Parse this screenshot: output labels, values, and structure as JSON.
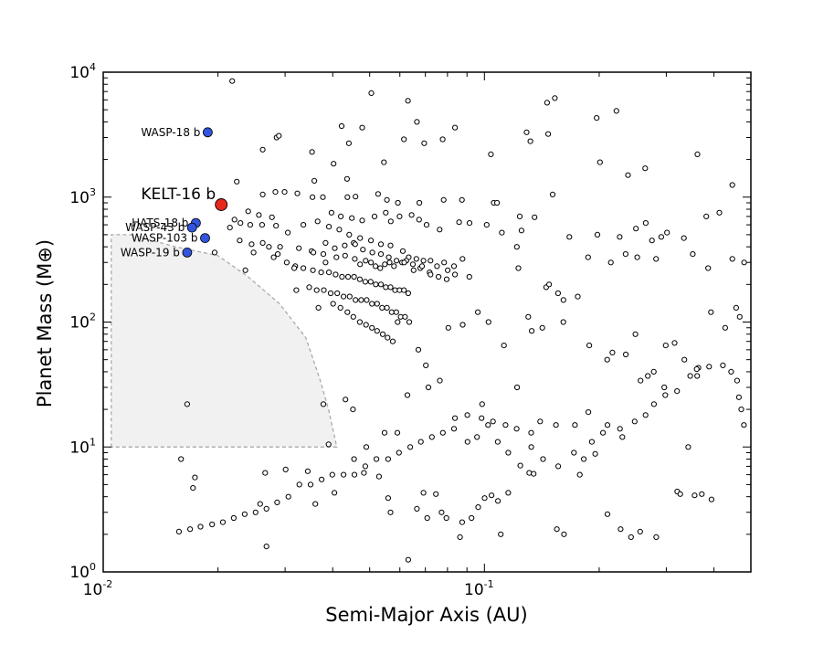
{
  "chart_data": {
    "type": "scatter",
    "title": "",
    "xlabel": "Semi-Major Axis (AU)",
    "ylabel": "Planet Mass (M⊕)",
    "xscale": "log",
    "yscale": "log",
    "xlim": [
      0.01,
      0.5
    ],
    "ylim": [
      1,
      10000
    ],
    "grid": false,
    "x_ticks": [
      {
        "value": 0.01,
        "base": "10",
        "exp": "-2"
      },
      {
        "value": 0.1,
        "base": "10",
        "exp": "-1"
      }
    ],
    "y_ticks": [
      {
        "value": 1,
        "base": "10",
        "exp": "0"
      },
      {
        "value": 10,
        "base": "10",
        "exp": "1"
      },
      {
        "value": 100,
        "base": "10",
        "exp": "2"
      },
      {
        "value": 1000,
        "base": "10",
        "exp": "3"
      },
      {
        "value": 10000,
        "base": "10",
        "exp": "4"
      }
    ],
    "colors": {
      "highlight": "#e8281e",
      "named": "#3355dd",
      "background_points": "#ffffff",
      "excluded_region": "#f0f1f0"
    },
    "excluded_region": [
      [
        0.0105,
        10
      ],
      [
        0.0105,
        500
      ],
      [
        0.0118,
        500
      ],
      [
        0.0155,
        400
      ],
      [
        0.02,
        340
      ],
      [
        0.024,
        230
      ],
      [
        0.029,
        140
      ],
      [
        0.034,
        75
      ],
      [
        0.037,
        35
      ],
      [
        0.039,
        20
      ],
      [
        0.041,
        10
      ]
    ],
    "highlight": [
      {
        "name": "KELT-16 b",
        "x": 0.0204,
        "y": 870
      }
    ],
    "named_planets": [
      {
        "name": "WASP-18 b",
        "x": 0.0188,
        "y": 3300
      },
      {
        "name": "HATS-18 b",
        "x": 0.0175,
        "y": 620
      },
      {
        "name": "WASP-43 b",
        "x": 0.0171,
        "y": 570
      },
      {
        "name": "WASP-103 b",
        "x": 0.0185,
        "y": 470
      },
      {
        "name": "WASP-19 b",
        "x": 0.0166,
        "y": 360
      }
    ],
    "background_points": [
      [
        0.0218,
        8500
      ],
      [
        0.0505,
        6800
      ],
      [
        0.063,
        5900
      ],
      [
        0.0665,
        4000
      ],
      [
        0.146,
        5700
      ],
      [
        0.153,
        6200
      ],
      [
        0.197,
        4300
      ],
      [
        0.222,
        4900
      ],
      [
        0.0285,
        3000
      ],
      [
        0.0422,
        3700
      ],
      [
        0.0478,
        3600
      ],
      [
        0.0837,
        3600
      ],
      [
        0.129,
        3300
      ],
      [
        0.132,
        2800
      ],
      [
        0.147,
        3200
      ],
      [
        0.0289,
        3100
      ],
      [
        0.0262,
        2400
      ],
      [
        0.0353,
        2300
      ],
      [
        0.0441,
        2700
      ],
      [
        0.0615,
        2900
      ],
      [
        0.0695,
        2700
      ],
      [
        0.0777,
        2900
      ],
      [
        0.104,
        2200
      ],
      [
        0.0545,
        1900
      ],
      [
        0.0402,
        1850
      ],
      [
        0.0436,
        1400
      ],
      [
        0.201,
        1900
      ],
      [
        0.238,
        1500
      ],
      [
        0.264,
        1700
      ],
      [
        0.362,
        2200
      ],
      [
        0.447,
        1250
      ],
      [
        0.0224,
        1330
      ],
      [
        0.0262,
        1050
      ],
      [
        0.0283,
        1100
      ],
      [
        0.0299,
        1100
      ],
      [
        0.0354,
        1000
      ],
      [
        0.0377,
        1000
      ],
      [
        0.0437,
        1000
      ],
      [
        0.0526,
        1060
      ],
      [
        0.0555,
        950
      ],
      [
        0.0593,
        900
      ],
      [
        0.0675,
        900
      ],
      [
        0.0782,
        950
      ],
      [
        0.0873,
        950
      ],
      [
        0.1058,
        900
      ],
      [
        0.1079,
        900
      ],
      [
        0.1238,
        700
      ],
      [
        0.151,
        1050
      ],
      [
        0.0358,
        1350
      ],
      [
        0.0323,
        1070
      ],
      [
        0.0459,
        1010
      ],
      [
        0.0397,
        750
      ],
      [
        0.042,
        700
      ],
      [
        0.0449,
        680
      ],
      [
        0.0478,
        650
      ],
      [
        0.0515,
        700
      ],
      [
        0.0551,
        750
      ],
      [
        0.0568,
        640
      ],
      [
        0.0599,
        700
      ],
      [
        0.0644,
        720
      ],
      [
        0.0674,
        660
      ],
      [
        0.0705,
        600
      ],
      [
        0.0763,
        550
      ],
      [
        0.0858,
        630
      ],
      [
        0.0914,
        620
      ],
      [
        0.1014,
        600
      ],
      [
        0.1111,
        520
      ],
      [
        0.1251,
        540
      ],
      [
        0.1354,
        690
      ],
      [
        0.024,
        770
      ],
      [
        0.0256,
        720
      ],
      [
        0.0277,
        690
      ],
      [
        0.0221,
        660
      ],
      [
        0.0229,
        620
      ],
      [
        0.0243,
        600
      ],
      [
        0.0261,
        600
      ],
      [
        0.0284,
        590
      ],
      [
        0.0305,
        520
      ],
      [
        0.0335,
        600
      ],
      [
        0.0365,
        640
      ],
      [
        0.0391,
        580
      ],
      [
        0.0416,
        550
      ],
      [
        0.0442,
        500
      ],
      [
        0.0454,
        430
      ],
      [
        0.0472,
        470
      ],
      [
        0.0504,
        450
      ],
      [
        0.0535,
        420
      ],
      [
        0.0567,
        410
      ],
      [
        0.0611,
        370
      ],
      [
        0.0633,
        330
      ],
      [
        0.0663,
        320
      ],
      [
        0.0692,
        310
      ],
      [
        0.0722,
        310
      ],
      [
        0.0784,
        300
      ],
      [
        0.0832,
        280
      ],
      [
        0.0876,
        320
      ],
      [
        0.0913,
        230
      ],
      [
        0.1216,
        400
      ],
      [
        0.1228,
        270
      ],
      [
        0.1452,
        190
      ],
      [
        0.1478,
        200
      ],
      [
        0.156,
        170
      ],
      [
        0.167,
        480
      ],
      [
        0.187,
        330
      ],
      [
        0.275,
        450
      ],
      [
        0.282,
        320
      ],
      [
        0.291,
        480
      ],
      [
        0.0215,
        570
      ],
      [
        0.0228,
        450
      ],
      [
        0.0245,
        420
      ],
      [
        0.0262,
        430
      ],
      [
        0.0291,
        400
      ],
      [
        0.0326,
        390
      ],
      [
        0.0352,
        370
      ],
      [
        0.0378,
        350
      ],
      [
        0.0383,
        300
      ],
      [
        0.0409,
        330
      ],
      [
        0.0431,
        340
      ],
      [
        0.0457,
        320
      ],
      [
        0.0472,
        290
      ],
      [
        0.0488,
        310
      ],
      [
        0.0504,
        300
      ],
      [
        0.0518,
        280
      ],
      [
        0.0533,
        270
      ],
      [
        0.0548,
        290
      ],
      [
        0.0564,
        300
      ],
      [
        0.0579,
        280
      ],
      [
        0.0608,
        300
      ],
      [
        0.0624,
        310
      ],
      [
        0.0652,
        260
      ],
      [
        0.0679,
        270
      ],
      [
        0.0718,
        250
      ],
      [
        0.0751,
        280
      ],
      [
        0.0801,
        260
      ],
      [
        0.0837,
        240
      ],
      [
        0.0272,
        400
      ],
      [
        0.0287,
        350
      ],
      [
        0.0303,
        300
      ],
      [
        0.0319,
        280
      ],
      [
        0.0335,
        270
      ],
      [
        0.0355,
        260
      ],
      [
        0.0373,
        250
      ],
      [
        0.0391,
        250
      ],
      [
        0.0407,
        240
      ],
      [
        0.0423,
        230
      ],
      [
        0.0439,
        230
      ],
      [
        0.0455,
        230
      ],
      [
        0.0471,
        220
      ],
      [
        0.0487,
        210
      ],
      [
        0.0503,
        210
      ],
      [
        0.0519,
        200
      ],
      [
        0.0535,
        200
      ],
      [
        0.0551,
        190
      ],
      [
        0.0567,
        190
      ],
      [
        0.0583,
        180
      ],
      [
        0.0599,
        180
      ],
      [
        0.0615,
        180
      ],
      [
        0.0631,
        170
      ],
      [
        0.0347,
        190
      ],
      [
        0.0363,
        180
      ],
      [
        0.0379,
        180
      ],
      [
        0.0395,
        170
      ],
      [
        0.0411,
        170
      ],
      [
        0.0427,
        160
      ],
      [
        0.0443,
        160
      ],
      [
        0.0459,
        150
      ],
      [
        0.0475,
        150
      ],
      [
        0.0491,
        150
      ],
      [
        0.0507,
        140
      ],
      [
        0.0523,
        140
      ],
      [
        0.0539,
        130
      ],
      [
        0.0555,
        130
      ],
      [
        0.0571,
        120
      ],
      [
        0.0587,
        120
      ],
      [
        0.0603,
        110
      ],
      [
        0.0619,
        110
      ],
      [
        0.0635,
        100
      ],
      [
        0.0321,
        180
      ],
      [
        0.0367,
        130
      ],
      [
        0.0401,
        140
      ],
      [
        0.0419,
        130
      ],
      [
        0.0437,
        120
      ],
      [
        0.0453,
        110
      ],
      [
        0.0471,
        100
      ],
      [
        0.0489,
        95
      ],
      [
        0.0507,
        90
      ],
      [
        0.0523,
        85
      ],
      [
        0.0541,
        80
      ],
      [
        0.0557,
        75
      ],
      [
        0.0575,
        70
      ],
      [
        0.0592,
        100
      ],
      [
        0.0671,
        60
      ],
      [
        0.0702,
        45
      ],
      [
        0.0804,
        90
      ],
      [
        0.0877,
        95
      ],
      [
        0.0961,
        120
      ],
      [
        0.1025,
        100
      ],
      [
        0.1125,
        65
      ],
      [
        0.1303,
        110
      ],
      [
        0.1331,
        85
      ],
      [
        0.1419,
        90
      ],
      [
        0.1611,
        100
      ],
      [
        0.1884,
        65
      ],
      [
        0.2099,
        50
      ],
      [
        0.2166,
        57
      ],
      [
        0.2349,
        55
      ],
      [
        0.2489,
        80
      ],
      [
        0.2782,
        40
      ],
      [
        0.2989,
        65
      ],
      [
        0.3346,
        50
      ],
      [
        0.3614,
        37
      ],
      [
        0.3929,
        120
      ],
      [
        0.4281,
        90
      ],
      [
        0.4574,
        130
      ],
      [
        0.4675,
        110
      ],
      [
        0.4801,
        300
      ],
      [
        0.4471,
        320
      ],
      [
        0.3862,
        270
      ],
      [
        0.3521,
        350
      ],
      [
        0.3337,
        470
      ],
      [
        0.3013,
        520
      ],
      [
        0.2649,
        620
      ],
      [
        0.2497,
        560
      ],
      [
        0.2264,
        480
      ],
      [
        0.1979,
        500
      ],
      [
        0.1757,
        160
      ],
      [
        0.1612,
        150
      ],
      [
        0.2146,
        300
      ],
      [
        0.2346,
        350
      ],
      [
        0.2517,
        330
      ],
      [
        0.4134,
        750
      ],
      [
        0.3819,
        700
      ],
      [
        0.4438,
        40
      ],
      [
        0.4601,
        34
      ],
      [
        0.4652,
        25
      ],
      [
        0.4718,
        20
      ],
      [
        0.4794,
        15
      ],
      [
        0.4223,
        45
      ],
      [
        0.3885,
        44
      ],
      [
        0.3641,
        43
      ],
      [
        0.3466,
        37
      ],
      [
        0.3201,
        28
      ],
      [
        0.2982,
        26
      ],
      [
        0.2785,
        22
      ],
      [
        0.2646,
        18
      ],
      [
        0.2479,
        16
      ],
      [
        0.2268,
        14
      ],
      [
        0.2047,
        13
      ],
      [
        0.1913,
        11
      ],
      [
        0.1823,
        8
      ],
      [
        0.1717,
        9
      ],
      [
        0.1562,
        7
      ],
      [
        0.1425,
        8
      ],
      [
        0.1327,
        10
      ],
      [
        0.1215,
        14
      ],
      [
        0.1136,
        15
      ],
      [
        0.1053,
        16
      ],
      [
        0.0983,
        17
      ],
      [
        0.0902,
        18
      ],
      [
        0.0832,
        14
      ],
      [
        0.0778,
        13
      ],
      [
        0.0728,
        12
      ],
      [
        0.0681,
        11
      ],
      [
        0.0639,
        10
      ],
      [
        0.0597,
        9
      ],
      [
        0.0559,
        8
      ],
      [
        0.0521,
        8
      ],
      [
        0.0487,
        7
      ],
      [
        0.0456,
        6
      ],
      [
        0.0427,
        6
      ],
      [
        0.0399,
        6
      ],
      [
        0.0374,
        5.5
      ],
      [
        0.035,
        5
      ],
      [
        0.0327,
        5
      ],
      [
        0.0306,
        4
      ],
      [
        0.0286,
        3.6
      ],
      [
        0.0268,
        3.2
      ],
      [
        0.0251,
        3
      ],
      [
        0.0235,
        2.9
      ],
      [
        0.022,
        2.7
      ],
      [
        0.0206,
        2.5
      ],
      [
        0.0193,
        2.4
      ],
      [
        0.018,
        2.3
      ],
      [
        0.0169,
        2.2
      ],
      [
        0.0158,
        2.1
      ],
      [
        0.016,
        8
      ],
      [
        0.0174,
        5.7
      ],
      [
        0.0172,
        4.7
      ],
      [
        0.0258,
        3.5
      ],
      [
        0.0266,
        6.2
      ],
      [
        0.0301,
        6.6
      ],
      [
        0.0344,
        6.4
      ],
      [
        0.036,
        3.5
      ],
      [
        0.0404,
        4.3
      ],
      [
        0.0455,
        8
      ],
      [
        0.0483,
        6.2
      ],
      [
        0.0529,
        5.8
      ],
      [
        0.0559,
        3.9
      ],
      [
        0.0567,
        3
      ],
      [
        0.0665,
        3.2
      ],
      [
        0.0708,
        2.7
      ],
      [
        0.0692,
        4.3
      ],
      [
        0.0746,
        4.2
      ],
      [
        0.0772,
        3
      ],
      [
        0.0795,
        2.7
      ],
      [
        0.0863,
        1.9
      ],
      [
        0.0874,
        2.5
      ],
      [
        0.0925,
        2.7
      ],
      [
        0.0963,
        3.3
      ],
      [
        0.1001,
        3.9
      ],
      [
        0.1044,
        4.1
      ],
      [
        0.1085,
        3.7
      ],
      [
        0.1104,
        2
      ],
      [
        0.1155,
        4.3
      ],
      [
        0.1242,
        7.1
      ],
      [
        0.1311,
        6.2
      ],
      [
        0.1346,
        6.1
      ],
      [
        0.1549,
        2.2
      ],
      [
        0.1617,
        2
      ],
      [
        0.1779,
        6
      ],
      [
        0.1953,
        8.8
      ],
      [
        0.2103,
        2.9
      ],
      [
        0.2276,
        2.2
      ],
      [
        0.2424,
        1.9
      ],
      [
        0.2562,
        2.1
      ],
      [
        0.2823,
        1.9
      ],
      [
        0.3205,
        4.4
      ],
      [
        0.3264,
        4.2
      ],
      [
        0.3559,
        4.1
      ],
      [
        0.3718,
        4.2
      ],
      [
        0.3941,
        3.8
      ],
      [
        0.0268,
        1.6
      ],
      [
        0.0631,
        1.25
      ],
      [
        0.0166,
        22
      ],
      [
        0.0378,
        22
      ],
      [
        0.039,
        10.5
      ],
      [
        0.0432,
        24
      ],
      [
        0.0452,
        20
      ],
      [
        0.049,
        10
      ],
      [
        0.0547,
        13
      ],
      [
        0.0591,
        13
      ],
      [
        0.0628,
        26
      ],
      [
        0.0713,
        30
      ],
      [
        0.0764,
        34
      ],
      [
        0.0837,
        17
      ],
      [
        0.0903,
        11
      ],
      [
        0.0956,
        12
      ],
      [
        0.0986,
        22
      ],
      [
        0.1022,
        15
      ],
      [
        0.1084,
        11
      ],
      [
        0.1155,
        9
      ],
      [
        0.1218,
        30
      ],
      [
        0.1326,
        13
      ],
      [
        0.14,
        16
      ],
      [
        0.154,
        15
      ],
      [
        0.1728,
        15
      ],
      [
        0.1874,
        19
      ],
      [
        0.2103,
        15
      ],
      [
        0.2301,
        12
      ],
      [
        0.2568,
        34
      ],
      [
        0.2684,
        37
      ],
      [
        0.2963,
        30
      ],
      [
        0.3154,
        68
      ],
      [
        0.3424,
        10
      ],
      [
        0.3605,
        42
      ],
      [
        0.0196,
        360
      ],
      [
        0.0236,
        260
      ],
      [
        0.0248,
        360
      ],
      [
        0.028,
        330
      ],
      [
        0.0317,
        270
      ],
      [
        0.0356,
        360
      ],
      [
        0.0383,
        430
      ],
      [
        0.0405,
        390
      ],
      [
        0.043,
        410
      ],
      [
        0.0458,
        420
      ],
      [
        0.048,
        380
      ],
      [
        0.0508,
        360
      ],
      [
        0.0535,
        350
      ],
      [
        0.0561,
        330
      ],
      [
        0.0588,
        310
      ],
      [
        0.0616,
        300
      ],
      [
        0.0649,
        290
      ],
      [
        0.0686,
        280
      ],
      [
        0.0722,
        240
      ],
      [
        0.0758,
        230
      ],
      [
        0.0796,
        220
      ]
    ]
  }
}
